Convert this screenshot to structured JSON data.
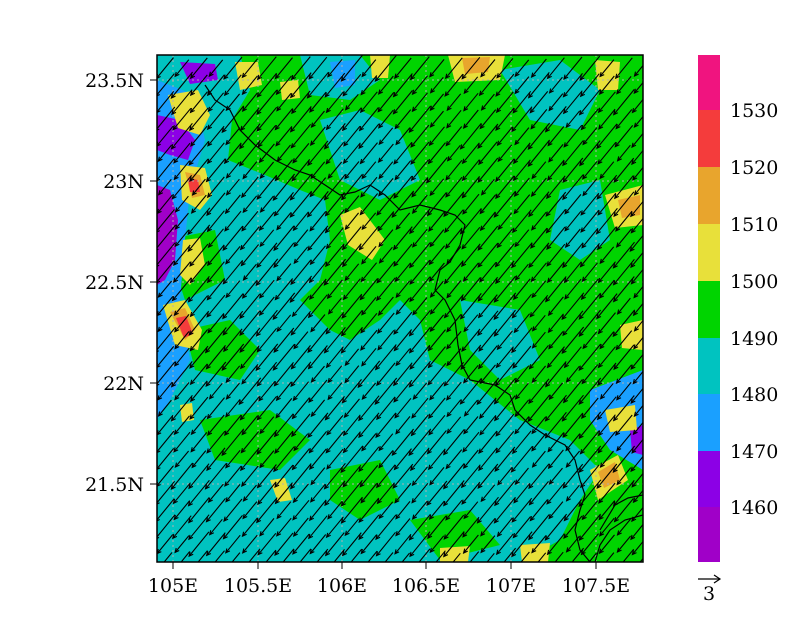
{
  "map": {
    "lat_ticks": [
      "23.5N",
      "23N",
      "22.5N",
      "22N",
      "21.5N"
    ],
    "lon_ticks": [
      "105E",
      "105.5E",
      "106E",
      "106.5E",
      "107E",
      "107.5E"
    ]
  },
  "colorbar": {
    "labels": [
      "1530",
      "1520",
      "1510",
      "1500",
      "1490",
      "1480",
      "1470",
      "1460"
    ],
    "colors_top_to_bottom": [
      "#f0147f",
      "#f43c3c",
      "#e8a52d",
      "#e8e03a",
      "#00d400",
      "#00c3c0",
      "#1aa0ff",
      "#8c00e6",
      "#a000c8"
    ]
  },
  "vector_ref": {
    "label": "3"
  },
  "palette": {
    "magenta": "#f0147f",
    "red": "#f43c3c",
    "orange": "#e8a52d",
    "yellow": "#e8e03a",
    "green": "#00d400",
    "cyan": "#00c3c0",
    "blue": "#1aa0ff",
    "purple": "#8c00e6",
    "violet": "#a000c8"
  }
}
